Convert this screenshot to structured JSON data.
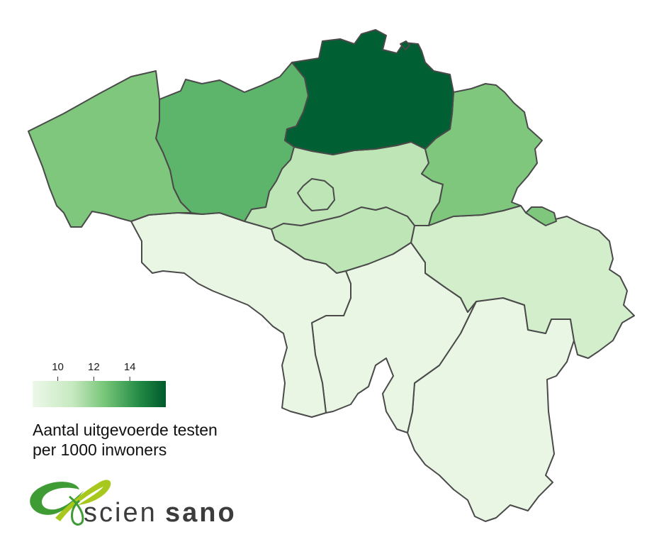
{
  "map": {
    "colors": {
      "scale_low": "#edf8e9",
      "scale_high": "#00592b",
      "border": "#4a4a4a"
    },
    "provinces": [
      {
        "name": "West-Vlaanderen",
        "color": "#7fc77d"
      },
      {
        "name": "Oost-Vlaanderen",
        "color": "#5db56b"
      },
      {
        "name": "Antwerpen",
        "color": "#005f33"
      },
      {
        "name": "Limburg",
        "color": "#7fc77d"
      },
      {
        "name": "Vlaams-Brabant",
        "color": "#bde5b6"
      },
      {
        "name": "Brussel",
        "color": "#bde5b6"
      },
      {
        "name": "Brabant wallon",
        "color": "#bde5b6"
      },
      {
        "name": "Hainaut",
        "color": "#e9f6e4"
      },
      {
        "name": "Namur",
        "color": "#e9f6e4"
      },
      {
        "name": "Liège",
        "color": "#d3eecb"
      },
      {
        "name": "Luxembourg",
        "color": "#e9f6e4"
      }
    ]
  },
  "legend": {
    "ticks": [
      {
        "label": "10",
        "value": 10
      },
      {
        "label": "12",
        "value": 12
      },
      {
        "label": "14",
        "value": 14
      }
    ],
    "range": [
      8.6,
      16
    ],
    "title_line1": "Aantal uitgevoerde testen",
    "title_line2": "per 1000 inwoners"
  },
  "logo": {
    "text_light": "scien",
    "text_bold": "sano",
    "colors": {
      "green": "#3f9c35",
      "lime": "#a8c81e",
      "text": "#3c3c3c"
    }
  }
}
